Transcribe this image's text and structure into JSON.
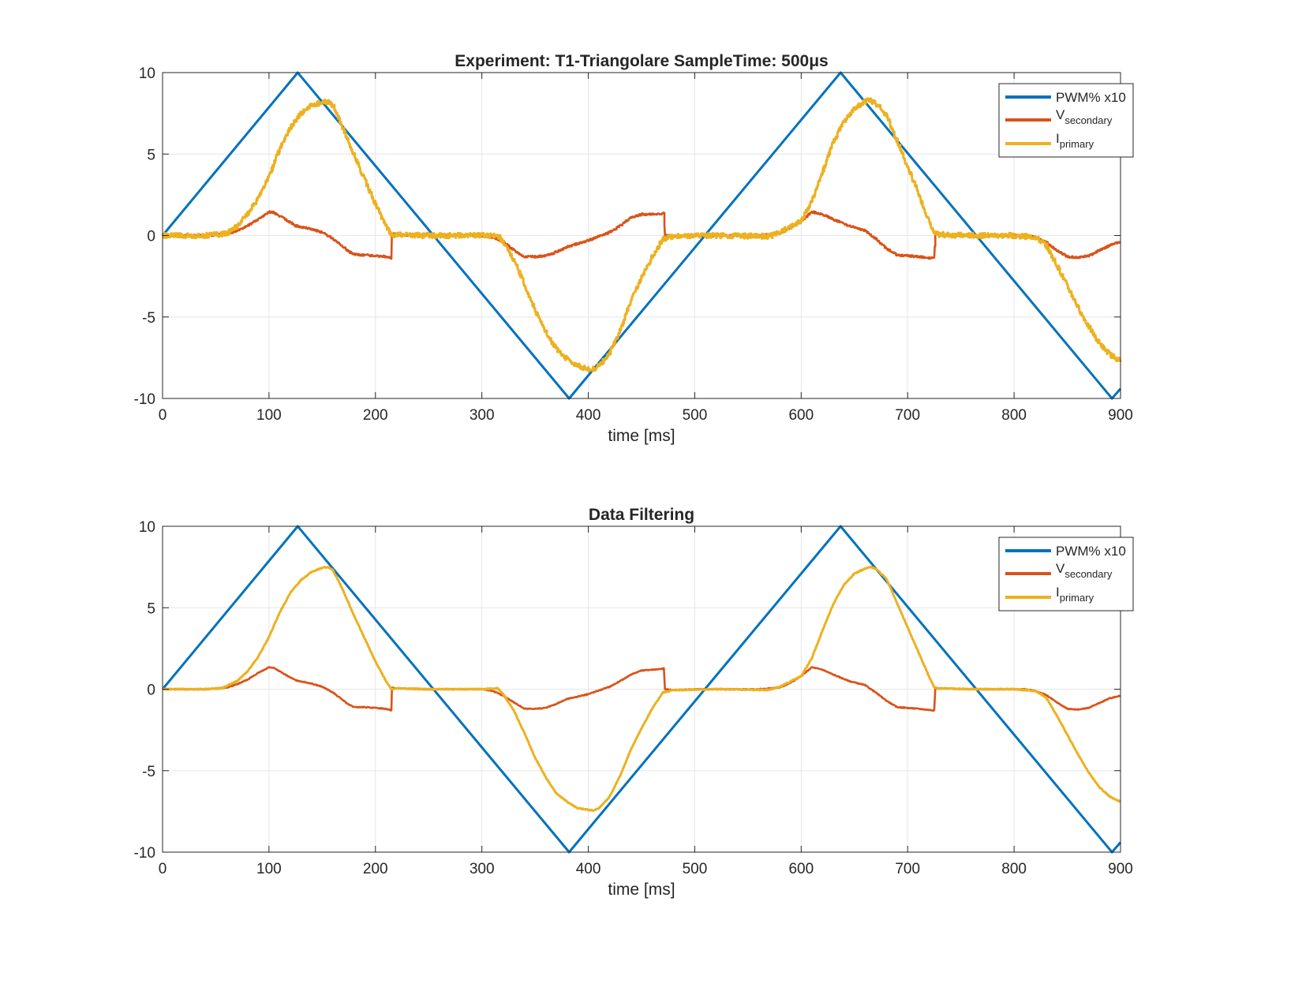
{
  "colors": {
    "pwm": "#0072BD",
    "vsecondary": "#D95319",
    "iprimary": "#EDB120",
    "grid": "#e6e6e6",
    "axis": "#262626"
  },
  "legend": {
    "pwm": "PWM% x10",
    "v_main": "V",
    "v_sub": "secondary",
    "i_main": "I",
    "i_sub": "primary"
  },
  "chart_data": [
    {
      "type": "line",
      "title": "Experiment: T1-Triangolare   SampleTime: 500μs",
      "xlabel": "time [ms]",
      "ylabel": "",
      "xlim": [
        0,
        900
      ],
      "ylim": [
        -10,
        10
      ],
      "xticks": [
        0,
        100,
        200,
        300,
        400,
        500,
        600,
        700,
        800,
        900
      ],
      "yticks": [
        -10,
        -5,
        0,
        5,
        10
      ],
      "grid": true,
      "legend_position": "top-right",
      "noisy": true,
      "series": [
        {
          "key": "pwm",
          "name": "PWM% x10",
          "x": [
            0,
            127,
            382,
            637,
            892,
            900
          ],
          "y": [
            0,
            10,
            -10,
            10,
            -10,
            -9.4
          ]
        },
        {
          "key": "vsecondary",
          "name": "V_secondary",
          "x": [
            0,
            20,
            40,
            60,
            70,
            80,
            90,
            100,
            105,
            115,
            125,
            140,
            150,
            160,
            170,
            175,
            180,
            185,
            190,
            200,
            210,
            215,
            215.5,
            220,
            250,
            300,
            310,
            320,
            330,
            340,
            350,
            360,
            370,
            380,
            400,
            420,
            430,
            440,
            450,
            460,
            470,
            471,
            472,
            480,
            500,
            560,
            580,
            590,
            600,
            610,
            620,
            630,
            645,
            660,
            670,
            680,
            690,
            700,
            710,
            725,
            726,
            730,
            760,
            810,
            820,
            830,
            840,
            850,
            860,
            870,
            880,
            890,
            900
          ],
          "y": [
            0,
            0,
            0,
            0.1,
            0.3,
            0.6,
            1.0,
            1.45,
            1.4,
            1.0,
            0.6,
            0.4,
            0.2,
            -0.2,
            -0.7,
            -1.0,
            -1.15,
            -1.2,
            -1.2,
            -1.25,
            -1.3,
            -1.4,
            0.1,
            0.05,
            0,
            0,
            -0.1,
            -0.4,
            -0.9,
            -1.3,
            -1.3,
            -1.25,
            -1.0,
            -0.7,
            -0.3,
            0.2,
            0.6,
            1.1,
            1.3,
            1.3,
            1.35,
            1.4,
            0,
            -0.05,
            0,
            0,
            0.1,
            0.5,
            0.9,
            1.45,
            1.3,
            1.0,
            0.6,
            0.3,
            -0.2,
            -0.8,
            -1.2,
            -1.25,
            -1.3,
            -1.4,
            0.05,
            0.05,
            0,
            0,
            -0.1,
            -0.4,
            -0.9,
            -1.3,
            -1.35,
            -1.25,
            -0.9,
            -0.6,
            -0.4
          ]
        },
        {
          "key": "iprimary",
          "name": "I_primary",
          "x": [
            0,
            20,
            40,
            60,
            70,
            80,
            90,
            100,
            110,
            120,
            130,
            140,
            150,
            155,
            160,
            165,
            170,
            180,
            190,
            200,
            210,
            215,
            220,
            250,
            300,
            315,
            320,
            330,
            340,
            350,
            360,
            370,
            380,
            390,
            400,
            405,
            410,
            420,
            430,
            440,
            450,
            460,
            470,
            480,
            520,
            570,
            580,
            600,
            610,
            620,
            630,
            640,
            650,
            660,
            665,
            670,
            680,
            690,
            700,
            710,
            720,
            725,
            730,
            760,
            800,
            820,
            830,
            840,
            850,
            860,
            870,
            880,
            890,
            900
          ],
          "y": [
            0,
            0,
            0,
            0.1,
            0.6,
            1.3,
            2.3,
            3.6,
            5.3,
            6.6,
            7.5,
            8.0,
            8.2,
            8.2,
            8.0,
            7.3,
            6.5,
            4.9,
            3.4,
            1.9,
            0.6,
            0,
            0.05,
            0,
            0,
            0,
            -0.4,
            -1.5,
            -3.0,
            -4.6,
            -5.9,
            -7.0,
            -7.6,
            -8.0,
            -8.2,
            -8.2,
            -8.0,
            -7.2,
            -5.8,
            -4.0,
            -2.6,
            -1.3,
            -0.2,
            -0.05,
            0,
            -0.05,
            0.2,
            0.9,
            2.1,
            3.9,
            5.7,
            7.0,
            7.8,
            8.2,
            8.3,
            8.1,
            7.4,
            5.8,
            4.2,
            2.6,
            0.9,
            0.1,
            0.05,
            0,
            0,
            -0.1,
            -0.6,
            -1.8,
            -3.1,
            -4.4,
            -5.6,
            -6.6,
            -7.3,
            -7.7
          ]
        }
      ]
    },
    {
      "type": "line",
      "title": "Data Filtering",
      "xlabel": "time [ms]",
      "ylabel": "",
      "xlim": [
        0,
        900
      ],
      "ylim": [
        -10,
        10
      ],
      "xticks": [
        0,
        100,
        200,
        300,
        400,
        500,
        600,
        700,
        800,
        900
      ],
      "yticks": [
        -10,
        -5,
        0,
        5,
        10
      ],
      "grid": true,
      "legend_position": "top-right",
      "noisy": false,
      "series": [
        {
          "key": "pwm",
          "name": "PWM% x10",
          "x": [
            0,
            127,
            382,
            637,
            892,
            900
          ],
          "y": [
            0,
            10,
            -10,
            10,
            -10,
            -9.4
          ]
        },
        {
          "key": "vsecondary",
          "name": "V_secondary",
          "x": [
            0,
            20,
            40,
            60,
            70,
            80,
            90,
            100,
            105,
            115,
            125,
            140,
            150,
            160,
            170,
            175,
            180,
            185,
            190,
            200,
            210,
            215,
            215.5,
            220,
            250,
            300,
            310,
            320,
            330,
            340,
            350,
            360,
            370,
            380,
            400,
            420,
            430,
            440,
            450,
            460,
            470,
            471,
            472,
            480,
            500,
            560,
            580,
            590,
            600,
            610,
            620,
            630,
            645,
            660,
            670,
            680,
            690,
            700,
            710,
            725,
            726,
            730,
            760,
            810,
            820,
            830,
            840,
            850,
            860,
            870,
            880,
            890,
            900
          ],
          "y": [
            0,
            0,
            0,
            0.1,
            0.3,
            0.6,
            1.0,
            1.35,
            1.3,
            0.9,
            0.55,
            0.35,
            0.15,
            -0.2,
            -0.7,
            -0.95,
            -1.1,
            -1.1,
            -1.1,
            -1.15,
            -1.2,
            -1.3,
            0.1,
            0.05,
            0,
            0,
            -0.1,
            -0.4,
            -0.8,
            -1.2,
            -1.2,
            -1.15,
            -0.9,
            -0.6,
            -0.3,
            0.15,
            0.5,
            0.9,
            1.15,
            1.2,
            1.25,
            1.3,
            0,
            -0.05,
            0,
            0,
            0.1,
            0.4,
            0.8,
            1.35,
            1.2,
            0.9,
            0.5,
            0.25,
            -0.2,
            -0.7,
            -1.1,
            -1.15,
            -1.2,
            -1.3,
            0.05,
            0.05,
            0,
            0,
            -0.1,
            -0.35,
            -0.8,
            -1.2,
            -1.25,
            -1.15,
            -0.85,
            -0.55,
            -0.4
          ]
        },
        {
          "key": "iprimary",
          "name": "I_primary",
          "x": [
            0,
            20,
            40,
            55,
            70,
            80,
            90,
            100,
            110,
            120,
            130,
            140,
            150,
            155,
            160,
            165,
            170,
            180,
            190,
            200,
            210,
            215,
            220,
            250,
            300,
            315,
            320,
            330,
            340,
            350,
            360,
            370,
            380,
            390,
            400,
            405,
            410,
            420,
            430,
            440,
            450,
            460,
            470,
            480,
            520,
            570,
            580,
            600,
            610,
            620,
            630,
            640,
            650,
            660,
            665,
            670,
            680,
            690,
            700,
            710,
            720,
            725,
            730,
            760,
            800,
            820,
            830,
            840,
            850,
            860,
            870,
            880,
            890,
            900
          ],
          "y": [
            0,
            0,
            0,
            0.05,
            0.5,
            1.1,
            2.0,
            3.2,
            4.7,
            5.9,
            6.7,
            7.2,
            7.45,
            7.5,
            7.3,
            6.7,
            6.0,
            4.5,
            3.1,
            1.7,
            0.5,
            0,
            0.05,
            0,
            0,
            0.05,
            -0.3,
            -1.3,
            -2.7,
            -4.2,
            -5.4,
            -6.4,
            -6.9,
            -7.3,
            -7.4,
            -7.45,
            -7.3,
            -6.6,
            -5.3,
            -3.7,
            -2.4,
            -1.2,
            -0.2,
            -0.05,
            0,
            -0.05,
            0.15,
            0.8,
            1.9,
            3.6,
            5.2,
            6.4,
            7.1,
            7.4,
            7.5,
            7.4,
            6.8,
            5.3,
            3.8,
            2.3,
            0.8,
            0.1,
            0.05,
            0,
            0,
            -0.1,
            -0.5,
            -1.6,
            -2.8,
            -4.0,
            -5.1,
            -6.0,
            -6.6,
            -6.9
          ]
        }
      ]
    }
  ]
}
